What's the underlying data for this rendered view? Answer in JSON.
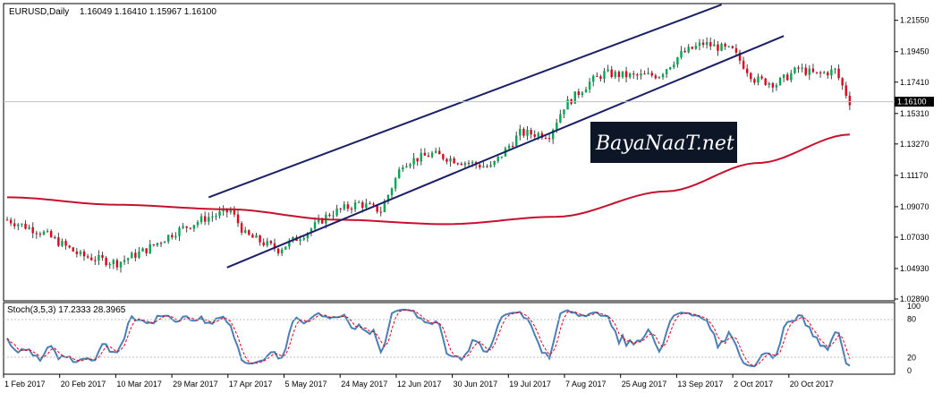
{
  "chart_data": [
    {
      "type": "candlestick",
      "title": "EURUSD,Daily",
      "ohlc_label": "1.16049 1.16410 1.15967 1.16100",
      "last_price": 1.161,
      "last_price_label": "1.16100",
      "ylim": [
        1.0289,
        1.2255
      ],
      "price_axis_ticks": [
        "1.21550",
        "1.19450",
        "1.17410",
        "1.15310",
        "1.13270",
        "1.11170",
        "1.09070",
        "1.07030",
        "1.04930",
        "1.02890"
      ],
      "date_axis_ticks": [
        "1 Feb 2017",
        "20 Feb 2017",
        "10 Mar 2017",
        "29 Mar 2017",
        "17 Apr 2017",
        "5 May 2017",
        "24 May 2017",
        "12 Jun 2017",
        "30 Jun 2017",
        "19 Jul 2017",
        "7 Aug 2017",
        "25 Aug 2017",
        "13 Sep 2017",
        "2 Oct 2017",
        "20 Oct 2017"
      ],
      "bars": 194,
      "keypoints": [
        {
          "i": 0,
          "close": 1.082
        },
        {
          "i": 10,
          "close": 1.073
        },
        {
          "i": 20,
          "close": 1.058
        },
        {
          "i": 30,
          "close": 1.053
        },
        {
          "i": 38,
          "close": 1.062
        },
        {
          "i": 46,
          "close": 1.074
        },
        {
          "i": 54,
          "close": 1.083
        },
        {
          "i": 61,
          "close": 1.088
        },
        {
          "i": 65,
          "close": 1.072
        },
        {
          "i": 74,
          "close": 1.062
        },
        {
          "i": 82,
          "close": 1.074
        },
        {
          "i": 88,
          "close": 1.086
        },
        {
          "i": 96,
          "close": 1.093
        },
        {
          "i": 102,
          "close": 1.088
        },
        {
          "i": 108,
          "close": 1.12
        },
        {
          "i": 116,
          "close": 1.126
        },
        {
          "i": 124,
          "close": 1.121
        },
        {
          "i": 132,
          "close": 1.117
        },
        {
          "i": 140,
          "close": 1.14
        },
        {
          "i": 148,
          "close": 1.139
        },
        {
          "i": 152,
          "close": 1.158
        },
        {
          "i": 159,
          "close": 1.174
        },
        {
          "i": 163,
          "close": 1.18
        },
        {
          "i": 171,
          "close": 1.178
        },
        {
          "i": 178,
          "close": 1.179
        },
        {
          "i": 184,
          "close": 1.193
        },
        {
          "i": 190,
          "close": 1.2
        },
        {
          "i": 198,
          "close": 1.195
        },
        {
          "i": 204,
          "close": 1.176
        },
        {
          "i": 210,
          "close": 1.173
        },
        {
          "i": 216,
          "close": 1.183
        },
        {
          "i": 221,
          "close": 1.179
        },
        {
          "i": 226,
          "close": 1.182
        },
        {
          "i": 230,
          "close": 1.161
        }
      ],
      "ma_curve": [
        {
          "i": 0,
          "v": 1.097
        },
        {
          "i": 30,
          "v": 1.092
        },
        {
          "i": 60,
          "v": 1.089
        },
        {
          "i": 90,
          "v": 1.082
        },
        {
          "i": 120,
          "v": 1.079
        },
        {
          "i": 150,
          "v": 1.084
        },
        {
          "i": 180,
          "v": 1.101
        },
        {
          "i": 205,
          "v": 1.12
        },
        {
          "i": 230,
          "v": 1.139
        }
      ],
      "channel_upper": [
        {
          "i": 55,
          "v": 1.097
        },
        {
          "i": 195,
          "v": 1.226
        }
      ],
      "channel_lower": [
        {
          "i": 60,
          "v": 1.05
        },
        {
          "i": 212,
          "v": 1.205
        }
      ],
      "channel_colors": "#1a1f66",
      "ma_color": "#c8102e",
      "bull_color": "#00a651",
      "bear_color": "#e0001b"
    },
    {
      "type": "line",
      "title": "Stoch(3,5,3) 17.2333 28.3965",
      "ylim": [
        0,
        100
      ],
      "ticks": [
        "100",
        "80",
        "20",
        "0"
      ],
      "main_color": "#4a7fb5",
      "signal_color": "#e0001b"
    }
  ],
  "watermark": {
    "text": "BayaNaaT.net"
  }
}
